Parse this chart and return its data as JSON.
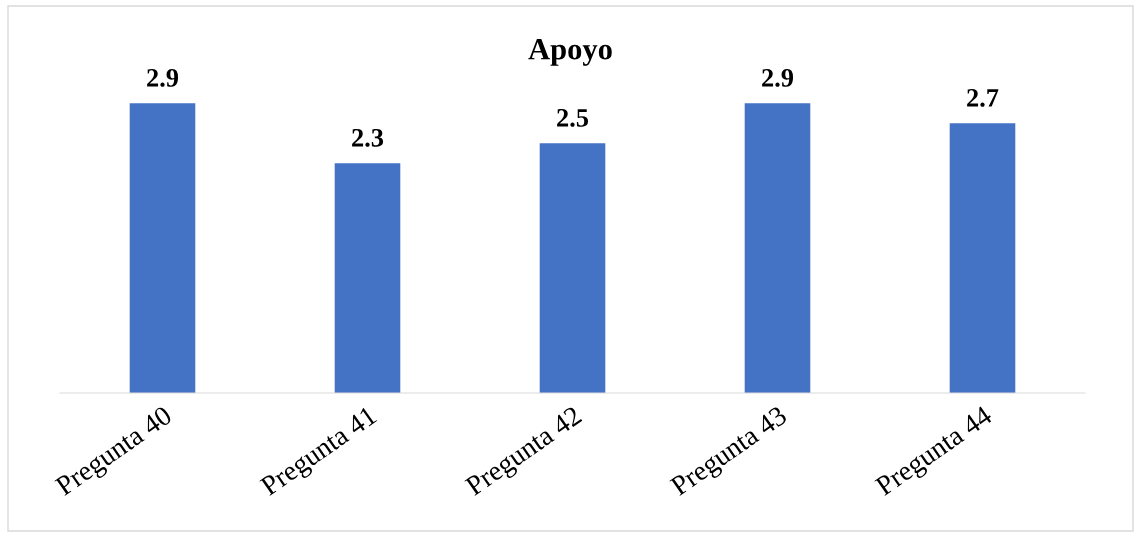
{
  "chart_data": {
    "type": "bar",
    "title": "Apoyo",
    "categories": [
      "Pregunta 40",
      "Pregunta 41",
      "Pregunta 42",
      "Pregunta 43",
      "Pregunta 44"
    ],
    "values": [
      2.9,
      2.3,
      2.5,
      2.9,
      2.7
    ],
    "color": "#4472c4",
    "data_labels": true,
    "grid": false,
    "legend": false
  }
}
